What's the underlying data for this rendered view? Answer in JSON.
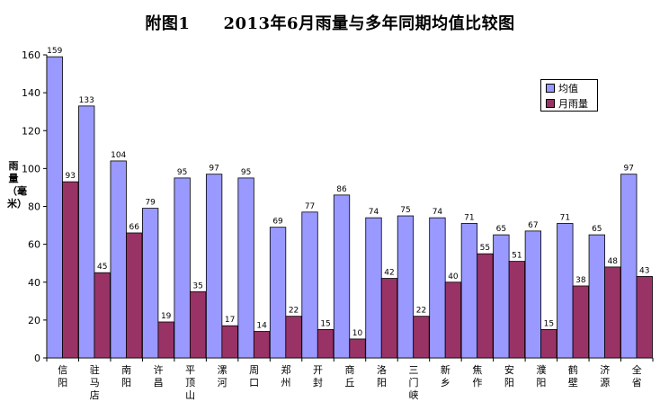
{
  "chart_data": {
    "type": "bar",
    "title": "附图1　　2013年6月雨量与多年同期均值比较图",
    "ylabel": "雨量（毫米）",
    "ylim": [
      0,
      160
    ],
    "yticks": [
      0,
      20,
      40,
      60,
      80,
      100,
      120,
      140,
      160
    ],
    "categories": [
      "信阳",
      "驻马店",
      "南阳",
      "许昌",
      "平顶山",
      "漯河",
      "周口",
      "郑州",
      "开封",
      "商丘",
      "洛阳",
      "三门峡",
      "新乡",
      "焦作",
      "安阳",
      "濮阳",
      "鹤壁",
      "济源",
      "全省"
    ],
    "series": [
      {
        "name": "均值",
        "color": "#9999ff",
        "values": [
          159,
          133,
          104,
          79,
          95,
          97,
          95,
          69,
          77,
          86,
          74,
          75,
          74,
          71,
          65,
          67,
          71,
          65,
          97
        ]
      },
      {
        "name": "月雨量",
        "color": "#993366",
        "values": [
          93,
          45,
          66,
          19,
          35,
          17,
          14,
          22,
          15,
          10,
          42,
          22,
          40,
          55,
          51,
          15,
          38,
          48,
          43
        ]
      }
    ],
    "legend_position": "top-right",
    "grid": false
  }
}
